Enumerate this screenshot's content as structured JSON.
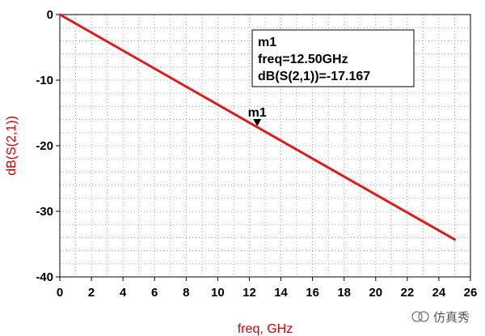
{
  "chart_data": {
    "type": "line",
    "xlabel": "freq, GHz",
    "ylabel": "dB(S(2,1))",
    "xlim": [
      0,
      26
    ],
    "ylim": [
      -40,
      0
    ],
    "xticks": [
      0,
      2,
      4,
      6,
      8,
      10,
      12,
      14,
      16,
      18,
      20,
      22,
      24,
      26
    ],
    "yticks": [
      0,
      -10,
      -20,
      -30,
      -40
    ],
    "grid": true,
    "series": [
      {
        "x": [
          0,
          12.5,
          25
        ],
        "y": [
          0,
          -17.167,
          -34.3
        ]
      }
    ],
    "marker": {
      "name": "m1",
      "x": 12.5,
      "y": -17.167,
      "label_lines": [
        "m1",
        "freq=12.50GHz",
        "dB(S(2,1))=-17.167"
      ]
    },
    "line_color": "#dd1c1c",
    "label_color": "#cc0000"
  },
  "watermark": {
    "text": "仿真秀"
  }
}
